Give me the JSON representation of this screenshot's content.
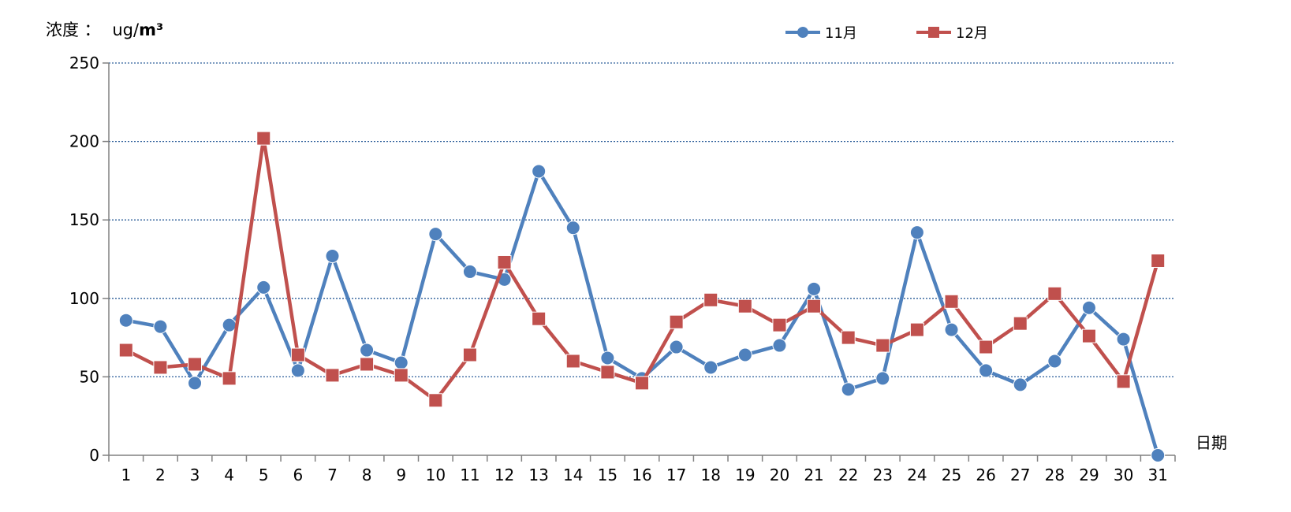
{
  "chart_data": {
    "type": "line",
    "ylabel_prefix": "浓度 ：",
    "ylabel_unit_plain": "ug/",
    "ylabel_unit_bold": "m³",
    "xlabel": "日期",
    "categories": [
      "1",
      "2",
      "3",
      "4",
      "5",
      "6",
      "7",
      "8",
      "9",
      "10",
      "11",
      "12",
      "13",
      "14",
      "15",
      "16",
      "17",
      "18",
      "19",
      "20",
      "21",
      "22",
      "23",
      "24",
      "25",
      "26",
      "27",
      "28",
      "29",
      "30",
      "31"
    ],
    "ylim": [
      0,
      250
    ],
    "yticks": [
      "0",
      "50",
      "100",
      "150",
      "200",
      "250"
    ],
    "grid": "horizontal dotted",
    "legend_position": "top-center",
    "series": [
      {
        "name": "11月",
        "color": "#4F81BD",
        "marker": "circle",
        "values": [
          86,
          82,
          46,
          83,
          107,
          54,
          127,
          67,
          59,
          141,
          117,
          112,
          181,
          145,
          62,
          49,
          69,
          56,
          64,
          70,
          106,
          42,
          49,
          142,
          80,
          54,
          45,
          60,
          94,
          74,
          0
        ]
      },
      {
        "name": "12月",
        "color": "#C0504D",
        "marker": "square",
        "values": [
          67,
          56,
          58,
          49,
          202,
          64,
          51,
          58,
          51,
          35,
          64,
          123,
          87,
          60,
          53,
          46,
          85,
          99,
          95,
          83,
          95,
          75,
          70,
          80,
          98,
          69,
          84,
          103,
          76,
          47,
          124
        ]
      }
    ]
  }
}
